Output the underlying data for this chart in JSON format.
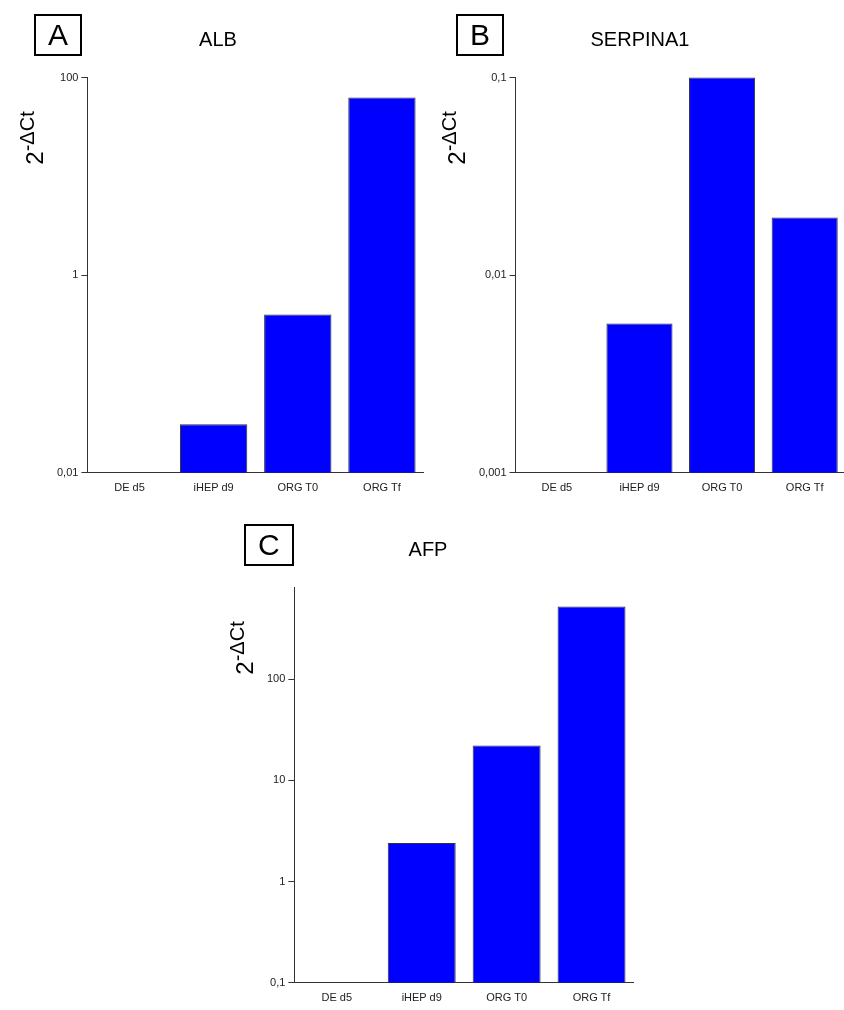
{
  "chart_data": [
    {
      "type": "bar",
      "title": "ALB",
      "ylabel": "2$^{-ΔCt}$",
      "annotations": [
        "A"
      ],
      "categories": [
        "DE d5",
        "iHEP d9",
        "ORG T0",
        "ORG Tf"
      ],
      "color": "#0000ff",
      "values": [
        null,
        0.031,
        0.4,
        63
      ],
      "log": true,
      "ylim": [
        0.01,
        100
      ],
      "yticks": [
        {
          "value": 0.01,
          "label": "0,01"
        },
        1,
        100
      ],
      "grid": false,
      "legend": false
    },
    {
      "type": "bar",
      "title": "SERPINA1",
      "ylabel": "2$^{-ΔCt}$",
      "annotations": [
        "B"
      ],
      "categories": [
        "DE d5",
        "iHEP d9",
        "ORG T0",
        "ORG Tf"
      ],
      "color": "#0000ff",
      "values": [
        null,
        0.0057,
        0.1,
        0.0196
      ],
      "log": true,
      "ylim": [
        0.001,
        0.1
      ],
      "yticks": [
        {
          "value": 0.001,
          "label": "0,001"
        },
        {
          "value": 0.01,
          "label": "0,01"
        },
        {
          "value": 0.1,
          "label": "0,1"
        }
      ],
      "grid": false,
      "legend": false
    },
    {
      "type": "bar",
      "title": "AFP",
      "ylabel": "2$^{-ΔCt}$",
      "annotations": [
        "C"
      ],
      "categories": [
        "DE d5",
        "iHEP d9",
        "ORG T0",
        "ORG Tf"
      ],
      "color": "#0000ff",
      "values": [
        null,
        2.4,
        22,
        520
      ],
      "log": true,
      "ylim": [
        0.1,
        800
      ],
      "yticks": [
        {
          "value": 0.1,
          "label": "0,1"
        },
        1,
        10,
        100
      ],
      "grid": false,
      "legend": false
    }
  ]
}
